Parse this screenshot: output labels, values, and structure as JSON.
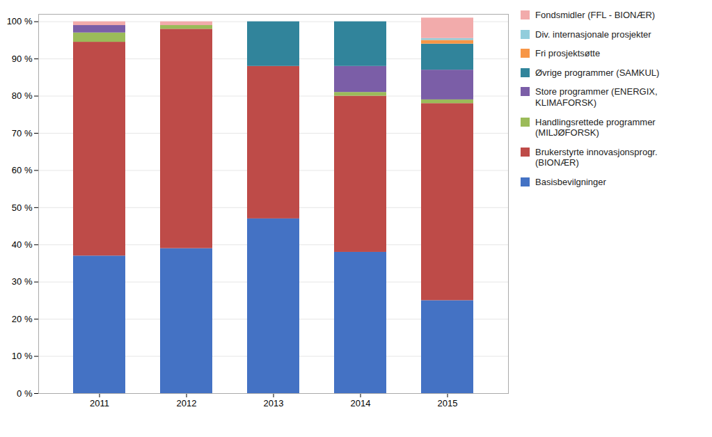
{
  "chart_data": {
    "type": "bar",
    "stacked": true,
    "categories": [
      "2011",
      "2012",
      "2013",
      "2014",
      "2015"
    ],
    "series": [
      {
        "name": "Basisbevilgninger",
        "color": "#4472C4",
        "values": [
          37.0,
          39.0,
          47.0,
          38.0,
          25.0
        ]
      },
      {
        "name": "Brukerstyrte innovasjonsprogr.\n(BIONÆR)",
        "color": "#BE4B48",
        "values": [
          57.5,
          59.0,
          41.0,
          42.0,
          53.0
        ]
      },
      {
        "name": "Handlingsrettede programmer\n(MILJØFORSK)",
        "color": "#9BBB59",
        "values": [
          2.5,
          1.0,
          0.0,
          1.0,
          1.0
        ]
      },
      {
        "name": "Store programmer (ENERGIX,\nKLIMAFORSK)",
        "color": "#7B5EA7",
        "values": [
          2.0,
          0.0,
          0.0,
          7.0,
          8.0
        ]
      },
      {
        "name": "Øvrige programmer (SAMKUL)",
        "color": "#31849B",
        "values": [
          0.0,
          0.0,
          12.0,
          12.0,
          7.0
        ]
      },
      {
        "name": "Fri prosjektsøtte",
        "color": "#F79646",
        "values": [
          0.0,
          0.0,
          0.0,
          0.0,
          1.0
        ]
      },
      {
        "name": "Div. internasjonale prosjekter",
        "color": "#92CDDC",
        "values": [
          0.0,
          0.0,
          0.0,
          0.0,
          0.5
        ]
      },
      {
        "name": "Fondsmidler (FFL - BIONÆR)",
        "color": "#F2ABAB",
        "values": [
          1.0,
          1.0,
          0.0,
          0.0,
          5.5
        ]
      }
    ],
    "ylim": [
      0,
      102
    ],
    "yticks": [
      {
        "value": 0,
        "label": "0 %"
      },
      {
        "value": 10,
        "label": "10 %"
      },
      {
        "value": 20,
        "label": "20 %"
      },
      {
        "value": 30,
        "label": "30 %"
      },
      {
        "value": 40,
        "label": "40 %"
      },
      {
        "value": 50,
        "label": "50 %"
      },
      {
        "value": 60,
        "label": "60 %"
      },
      {
        "value": 70,
        "label": "70 %"
      },
      {
        "value": 80,
        "label": "80 %"
      },
      {
        "value": 90,
        "label": "90 %"
      },
      {
        "value": 100,
        "label": "100 %"
      }
    ],
    "grid": true,
    "legend": "right"
  }
}
